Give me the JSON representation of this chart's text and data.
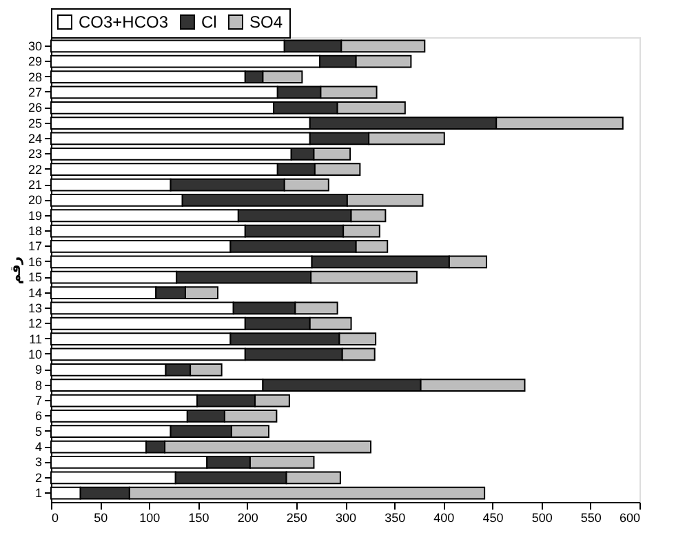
{
  "chart_data": {
    "type": "bar",
    "orientation": "horizontal",
    "stacked": true,
    "ylabel": "رقم",
    "categories": [
      "30",
      "29",
      "28",
      "27",
      "26",
      "25",
      "24",
      "23",
      "22",
      "21",
      "20",
      "19",
      "18",
      "17",
      "16",
      "15",
      "14",
      "13",
      "12",
      "11",
      "10",
      "9",
      "8",
      "7",
      "6",
      "5",
      "4",
      "3",
      "2",
      "1"
    ],
    "series": [
      {
        "name": "CO3+HCO3",
        "color": "#ffffff",
        "values": [
          238,
          274,
          198,
          231,
          227,
          264,
          264,
          245,
          231,
          122,
          134,
          191,
          198,
          183,
          266,
          128,
          107,
          186,
          198,
          183,
          198,
          117,
          216,
          149,
          139,
          122,
          97,
          159,
          127,
          30
        ]
      },
      {
        "name": "Cl",
        "color": "#333333",
        "values": [
          58,
          37,
          18,
          44,
          65,
          190,
          60,
          23,
          38,
          116,
          168,
          115,
          100,
          128,
          140,
          137,
          30,
          63,
          66,
          111,
          99,
          25,
          161,
          59,
          38,
          62,
          19,
          44,
          113,
          50
        ]
      },
      {
        "name": "SO4",
        "color": "#bdbdbd",
        "values": [
          85,
          56,
          40,
          57,
          69,
          129,
          77,
          37,
          46,
          45,
          77,
          35,
          37,
          32,
          38,
          108,
          33,
          43,
          42,
          37,
          33,
          32,
          106,
          35,
          53,
          38,
          210,
          65,
          55,
          362
        ]
      }
    ],
    "xlim": [
      0,
      600
    ],
    "xticks": [
      0,
      50,
      100,
      150,
      200,
      250,
      300,
      350,
      400,
      450,
      500,
      550,
      600
    ],
    "grid": false,
    "legend": "top"
  }
}
